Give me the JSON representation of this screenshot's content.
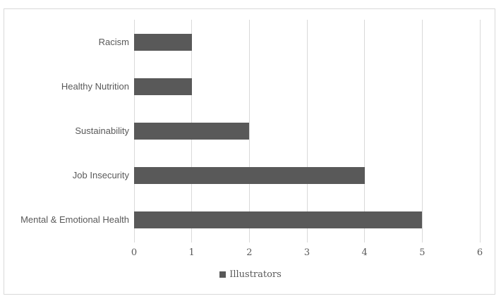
{
  "chart_data": {
    "type": "bar",
    "orientation": "horizontal",
    "title": "",
    "xlabel": "",
    "ylabel": "",
    "categories": [
      "Racism",
      "Healthy Nutrition",
      "Sustainability",
      "Job Insecurity",
      "Mental & Emotional Health"
    ],
    "series": [
      {
        "name": "Illustrators",
        "values": [
          1,
          1,
          2,
          4,
          5
        ]
      }
    ],
    "xlim": [
      0,
      6
    ],
    "x_ticks": [
      0,
      1,
      2,
      3,
      4,
      5,
      6
    ],
    "grid": "vertical",
    "legend_position": "bottom",
    "colors": {
      "bar": "#595959",
      "gridline": "#d9d9d9",
      "border": "#d9d9d9",
      "text": "#595959",
      "background": "#ffffff"
    }
  },
  "legend": {
    "label": "Illustrators"
  }
}
